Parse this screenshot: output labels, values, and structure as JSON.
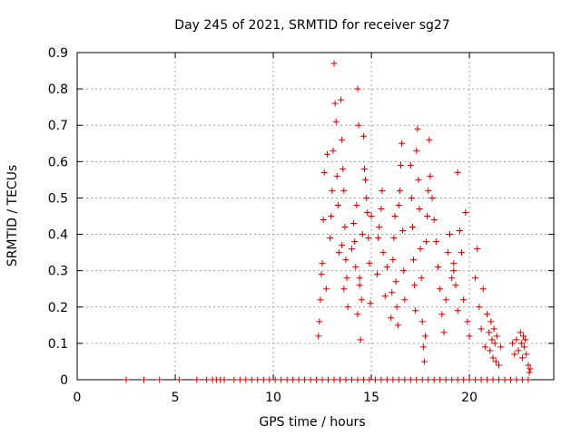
{
  "chart_data": {
    "type": "scatter",
    "title": "Day 245 of 2021, SRMTID for receiver sg27",
    "xlabel": "GPS time / hours",
    "ylabel": "SRMTID / TECUs",
    "xlim": [
      0,
      24.3
    ],
    "ylim": [
      0,
      0.9
    ],
    "xticks": [
      0,
      5,
      10,
      15,
      20
    ],
    "xtick_labels": [
      "0",
      "5",
      "10",
      "15",
      "20"
    ],
    "yticks": [
      0,
      0.1,
      0.2,
      0.3,
      0.4,
      0.5,
      0.6,
      0.7,
      0.8,
      0.9
    ],
    "ytick_labels": [
      "0",
      "0.1",
      "0.2",
      "0.3",
      "0.4",
      "0.5",
      "0.6",
      "0.7",
      "0.8",
      "0.9"
    ],
    "grid": true,
    "marker": "+",
    "series": [
      {
        "name": "SRMTID",
        "color": "#cc0000",
        "x": [
          2.5,
          3.4,
          4.2,
          5.2,
          6.1,
          6.6,
          6.9,
          7.1,
          7.3,
          7.5,
          8.0,
          8.3,
          8.6,
          8.9,
          9.2,
          9.5,
          9.8,
          10.1,
          10.4,
          10.7,
          11.0,
          11.3,
          11.6,
          11.9,
          12.2,
          12.5,
          12.8,
          13.1,
          13.4,
          13.7,
          14.0,
          14.3,
          14.6,
          14.9,
          15.2,
          15.5,
          15.8,
          16.1,
          16.4,
          16.7,
          17.0,
          17.3,
          17.6,
          17.9,
          18.2,
          18.5,
          18.8,
          19.1,
          19.4,
          19.7,
          20.0,
          20.3,
          20.6,
          20.9,
          21.2,
          21.5,
          21.8,
          22.1,
          22.4,
          22.7,
          23.0,
          12.3,
          12.35,
          12.4,
          12.45,
          12.5,
          12.55,
          12.6,
          12.7,
          12.75,
          12.9,
          12.95,
          13.0,
          13.05,
          13.1,
          13.15,
          13.2,
          13.25,
          13.3,
          13.35,
          13.45,
          13.5,
          13.55,
          13.6,
          13.65,
          13.7,
          13.75,
          13.8,
          13.6,
          13.5,
          14.0,
          14.1,
          14.15,
          14.2,
          14.25,
          14.3,
          14.35,
          14.4,
          14.45,
          14.5,
          14.55,
          14.6,
          14.65,
          14.7,
          14.75,
          14.8,
          14.85,
          14.9,
          14.95,
          15.0,
          14.4,
          14.3,
          15.3,
          15.35,
          15.4,
          15.5,
          15.55,
          15.6,
          15.7,
          15.8,
          16.0,
          16.05,
          16.1,
          16.15,
          16.2,
          16.25,
          16.3,
          16.35,
          16.4,
          16.45,
          16.5,
          16.55,
          16.6,
          16.65,
          16.7,
          17.0,
          17.05,
          17.1,
          17.15,
          17.2,
          17.25,
          17.3,
          17.35,
          17.4,
          17.45,
          17.5,
          17.55,
          17.6,
          17.65,
          17.7,
          17.75,
          17.8,
          17.85,
          17.9,
          17.95,
          18.0,
          18.1,
          18.2,
          18.3,
          18.4,
          18.5,
          18.6,
          18.7,
          18.8,
          18.9,
          19.0,
          19.1,
          19.2,
          19.3,
          19.4,
          19.5,
          19.6,
          19.7,
          19.8,
          19.9,
          20.0,
          19.2,
          19.4,
          20.3,
          20.4,
          20.5,
          20.6,
          20.7,
          20.8,
          20.9,
          21.0,
          21.05,
          21.1,
          21.15,
          21.2,
          21.25,
          21.3,
          21.35,
          21.4,
          21.5,
          21.6,
          22.2,
          22.3,
          22.4,
          22.5,
          22.6,
          22.65,
          22.7,
          22.75,
          22.8,
          22.85,
          22.9,
          23.0,
          23.05,
          23.1
        ],
        "y": [
          0,
          0,
          0,
          0,
          0,
          0,
          0,
          0,
          0,
          0,
          0,
          0,
          0,
          0,
          0,
          0,
          0,
          0,
          0,
          0,
          0,
          0,
          0,
          0,
          0,
          0,
          0,
          0,
          0,
          0,
          0,
          0,
          0,
          0,
          0,
          0,
          0,
          0,
          0,
          0,
          0,
          0,
          0,
          0,
          0,
          0,
          0,
          0,
          0,
          0,
          0,
          0,
          0,
          0,
          0,
          0,
          0,
          0,
          0,
          0,
          0,
          0.12,
          0.16,
          0.22,
          0.29,
          0.32,
          0.44,
          0.57,
          0.25,
          0.62,
          0.39,
          0.45,
          0.52,
          0.63,
          0.87,
          0.76,
          0.71,
          0.56,
          0.48,
          0.35,
          0.77,
          0.66,
          0.58,
          0.52,
          0.42,
          0.33,
          0.28,
          0.2,
          0.25,
          0.37,
          0.36,
          0.43,
          0.38,
          0.31,
          0.48,
          0.8,
          0.7,
          0.26,
          0.11,
          0.22,
          0.4,
          0.67,
          0.58,
          0.55,
          0.5,
          0.46,
          0.39,
          0.32,
          0.21,
          0.45,
          0.28,
          0.18,
          0.29,
          0.39,
          0.42,
          0.47,
          0.52,
          0.35,
          0.23,
          0.31,
          0.17,
          0.24,
          0.33,
          0.39,
          0.45,
          0.27,
          0.2,
          0.15,
          0.48,
          0.52,
          0.59,
          0.65,
          0.41,
          0.3,
          0.22,
          0.59,
          0.5,
          0.42,
          0.33,
          0.26,
          0.19,
          0.63,
          0.69,
          0.55,
          0.47,
          0.36,
          0.28,
          0.16,
          0.09,
          0.05,
          0.12,
          0.38,
          0.45,
          0.52,
          0.66,
          0.56,
          0.5,
          0.44,
          0.38,
          0.31,
          0.25,
          0.18,
          0.13,
          0.22,
          0.35,
          0.4,
          0.28,
          0.32,
          0.26,
          0.57,
          0.41,
          0.35,
          0.22,
          0.46,
          0.16,
          0.12,
          0.3,
          0.19,
          0.28,
          0.36,
          0.2,
          0.14,
          0.25,
          0.09,
          0.18,
          0.13,
          0.08,
          0.16,
          0.11,
          0.06,
          0.14,
          0.1,
          0.05,
          0.12,
          0.04,
          0.09,
          0.1,
          0.07,
          0.11,
          0.08,
          0.13,
          0.1,
          0.06,
          0.12,
          0.09,
          0.11,
          0.07,
          0.04,
          0.02,
          0.03
        ]
      }
    ]
  }
}
